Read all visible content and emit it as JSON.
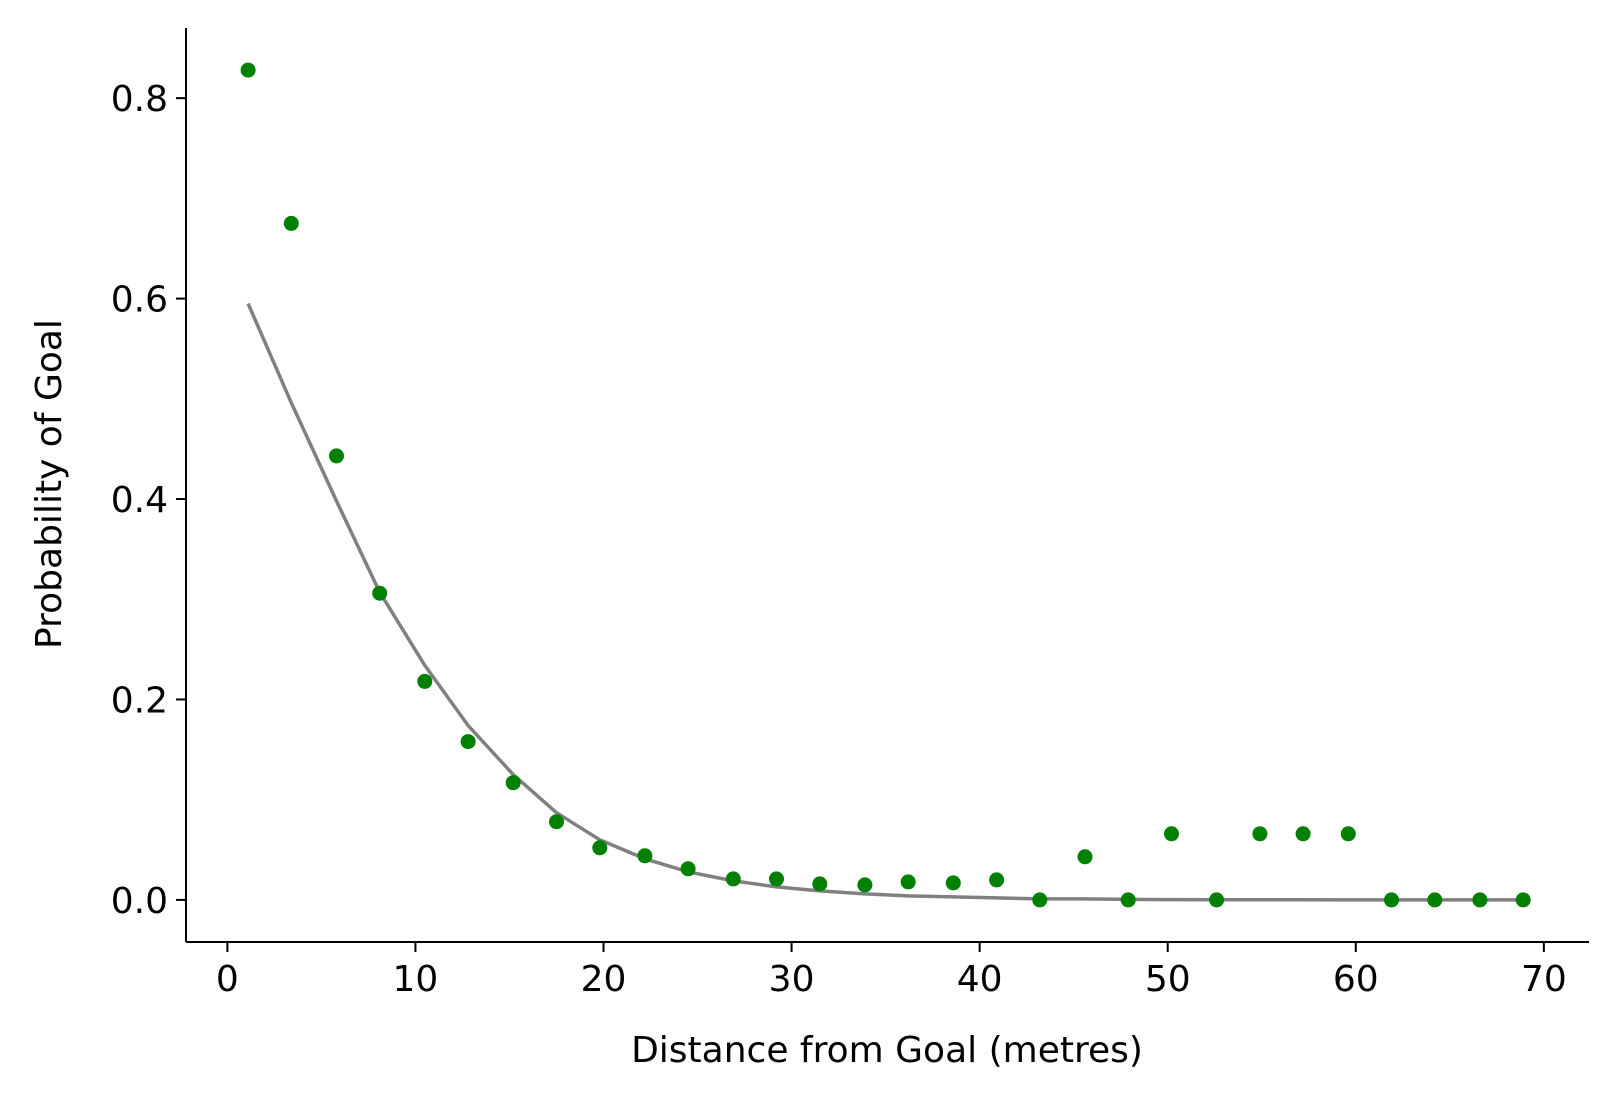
{
  "chart_data": {
    "type": "scatter",
    "title": "",
    "xlabel": "Distance from Goal (metres)",
    "ylabel": "Probability of Goal",
    "xlim": [
      -2.2,
      72.4
    ],
    "ylim": [
      -0.042,
      0.87
    ],
    "xticks": [
      0,
      10,
      20,
      30,
      40,
      50,
      60,
      70
    ],
    "xtick_labels": [
      "0",
      "10",
      "20",
      "30",
      "40",
      "50",
      "60",
      "70"
    ],
    "yticks": [
      0.0,
      0.2,
      0.4,
      0.6,
      0.8
    ],
    "ytick_labels": [
      "0.0",
      "0.2",
      "0.4",
      "0.6",
      "0.8"
    ],
    "grid": false,
    "series": [
      {
        "kind": "scatter",
        "color": "#008000",
        "x": [
          1.1,
          3.4,
          5.8,
          8.1,
          10.5,
          12.8,
          15.2,
          17.5,
          19.8,
          22.2,
          24.5,
          26.9,
          29.2,
          31.5,
          33.9,
          36.2,
          38.6,
          40.9,
          43.2,
          45.6,
          47.9,
          50.2,
          52.6,
          54.9,
          57.2,
          59.6,
          61.9,
          64.2,
          66.6,
          68.9
        ],
        "y": [
          0.828,
          0.675,
          0.443,
          0.306,
          0.218,
          0.158,
          0.117,
          0.078,
          0.052,
          0.044,
          0.031,
          0.021,
          0.021,
          0.016,
          0.015,
          0.018,
          0.017,
          0.02,
          0.0,
          0.043,
          0.0,
          0.066,
          0.0,
          0.066,
          0.066,
          0.066,
          0.0,
          0.0,
          0.0,
          0.0
        ]
      },
      {
        "kind": "line",
        "color": "#808080",
        "x": [
          1.1,
          3.4,
          5.8,
          8.1,
          10.5,
          12.8,
          15.2,
          17.5,
          19.8,
          22.2,
          24.5,
          26.9,
          29.2,
          31.5,
          33.9,
          36.2,
          38.6,
          40.9,
          43.2,
          45.6,
          47.9,
          50.2,
          52.6,
          54.9,
          57.2,
          59.6,
          61.9,
          64.2,
          66.6,
          68.9
        ],
        "y": [
          0.595,
          0.496,
          0.398,
          0.307,
          0.234,
          0.174,
          0.125,
          0.087,
          0.06,
          0.041,
          0.028,
          0.019,
          0.013,
          0.009,
          0.006,
          0.004,
          0.003,
          0.002,
          0.001,
          0.001,
          0.0005,
          0.0003,
          0.0002,
          0.0001,
          0.0001,
          0.0,
          0.0,
          0.0,
          0.0,
          0.0
        ]
      }
    ]
  }
}
